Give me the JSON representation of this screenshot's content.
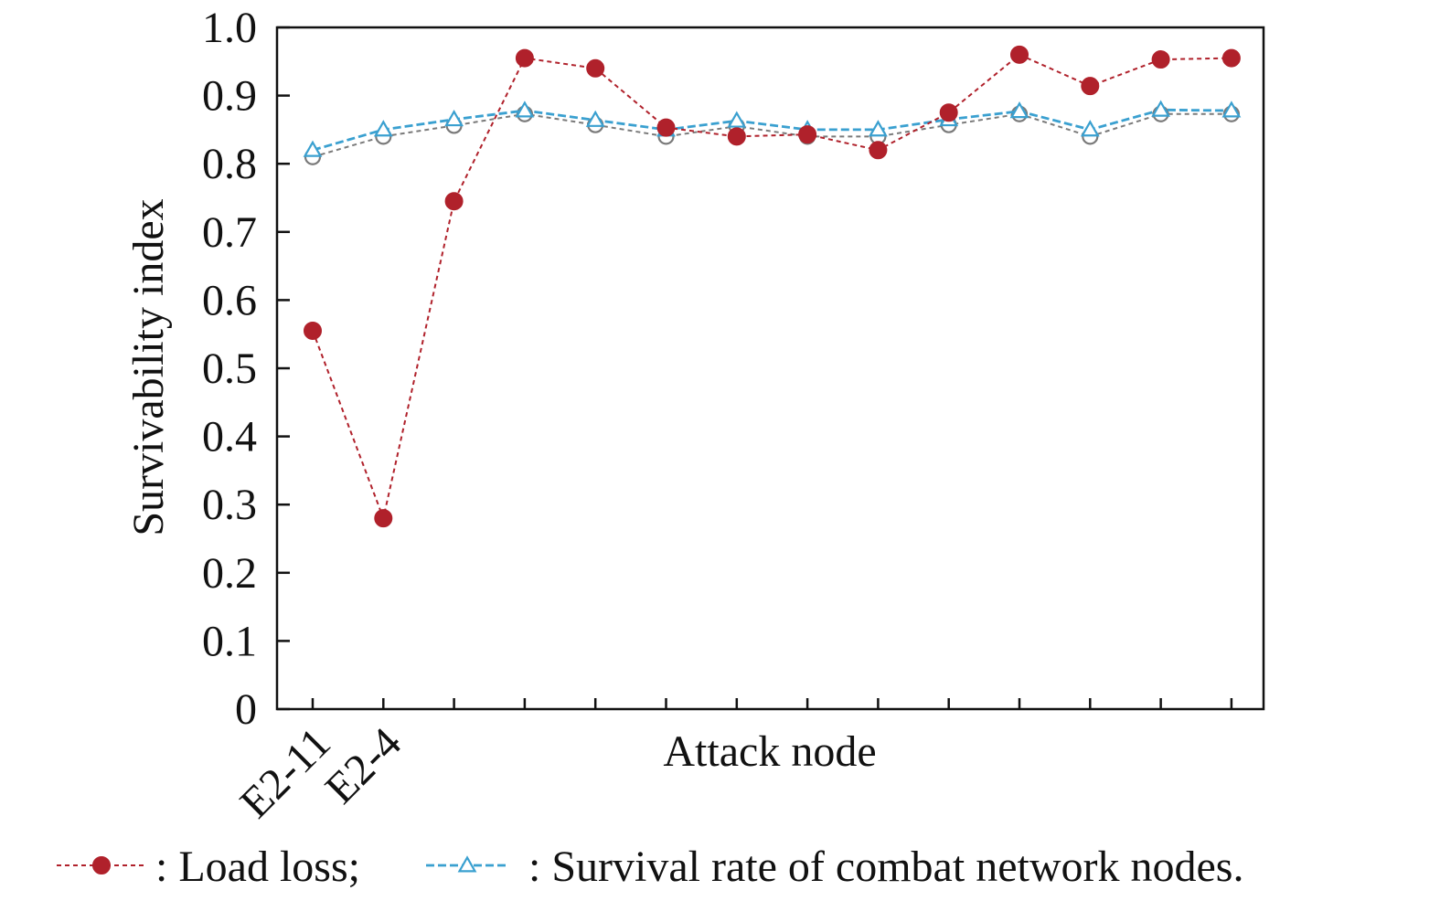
{
  "chart_data": {
    "type": "line",
    "xlabel": "Attack node",
    "ylabel": "Survivability index",
    "ylim": [
      0,
      1.0
    ],
    "yticks": [
      "0",
      "0.1",
      "0.2",
      "0.3",
      "0.4",
      "0.5",
      "0.6",
      "0.7",
      "0.8",
      "0.9",
      "1.0"
    ],
    "categories": [
      "E2-11",
      "E2-4",
      "",
      "",
      "",
      "",
      "",
      "",
      "",
      "",
      "",
      "",
      "",
      ""
    ],
    "grid": false,
    "series": [
      {
        "name": "Load loss;",
        "marker": "filled-circle",
        "color": "#b0212b",
        "values": [
          0.555,
          0.28,
          0.745,
          0.955,
          0.94,
          0.853,
          0.84,
          0.843,
          0.82,
          0.875,
          0.96,
          0.914,
          0.953,
          0.955
        ]
      },
      {
        "name": "Survival rate of combat network nodes.",
        "marker": "open-triangle",
        "color": "#3aa0d0",
        "values": [
          0.82,
          0.85,
          0.865,
          0.878,
          0.864,
          0.85,
          0.863,
          0.85,
          0.85,
          0.865,
          0.877,
          0.85,
          0.879,
          0.878
        ]
      },
      {
        "marker": "open-circle",
        "color": "#7a7a7a",
        "values": [
          0.81,
          0.84,
          0.856,
          0.873,
          0.857,
          0.84,
          0.855,
          0.84,
          0.84,
          0.857,
          0.873,
          0.84,
          0.873,
          0.873
        ]
      }
    ],
    "legend": {
      "placement": "bottom",
      "entries": [
        {
          "label": ": Load loss;",
          "series": 0
        },
        {
          "label": ": Survival rate of combat network nodes.",
          "series": 1
        }
      ]
    }
  }
}
